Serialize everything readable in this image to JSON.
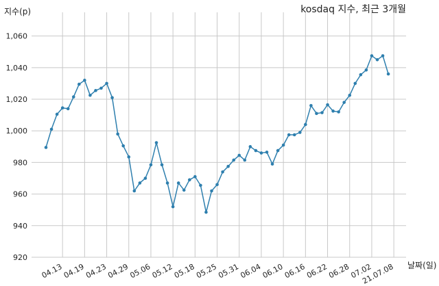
{
  "chart_data": {
    "type": "line",
    "title": "kosdaq 지수, 최근 3개월",
    "xlabel": "날짜(일)",
    "ylabel": "지수(p)",
    "ylim": [
      920,
      1075
    ],
    "yticks": [
      920,
      940,
      960,
      980,
      1000,
      1020,
      1040,
      1060
    ],
    "ytick_labels": [
      "920",
      "940",
      "960",
      "980",
      "1,000",
      "1,020",
      "1,040",
      "1,060"
    ],
    "xtick_labels": [
      "04.13",
      "04.19",
      "04.23",
      "04.29",
      "05.06",
      "05.12",
      "05.18",
      "05.25",
      "05.31",
      "06.04",
      "06.10",
      "06.16",
      "06.22",
      "06.28",
      "07.02",
      "21.07.08"
    ],
    "xtick_indices": [
      3,
      7,
      11,
      15,
      19,
      23,
      27,
      31,
      35,
      39,
      43,
      47,
      51,
      55,
      59,
      63
    ],
    "grid": true,
    "line_color": "#2e7fae",
    "series": [
      {
        "values": [
          989.5,
          1001,
          1010.5,
          1014.5,
          1014,
          1021.5,
          1029.5,
          1032,
          1022.5,
          1025.5,
          1027,
          1030,
          1021,
          998,
          990.5,
          983.5,
          962,
          967,
          970,
          978.5,
          992.5,
          978.5,
          967,
          952,
          967,
          962.5,
          969,
          971,
          965.5,
          948.5,
          962,
          966,
          974,
          977.5,
          981.5,
          984.5,
          981.5,
          990,
          987.5,
          986,
          986.5,
          979,
          987.5,
          991,
          997.5,
          997.5,
          999,
          1004,
          1016,
          1011,
          1011.5,
          1016.5,
          1012.5,
          1012,
          1018,
          1022.5,
          1030,
          1035.5,
          1038.5,
          1047.5,
          1045,
          1047.5,
          1036
        ]
      }
    ]
  }
}
